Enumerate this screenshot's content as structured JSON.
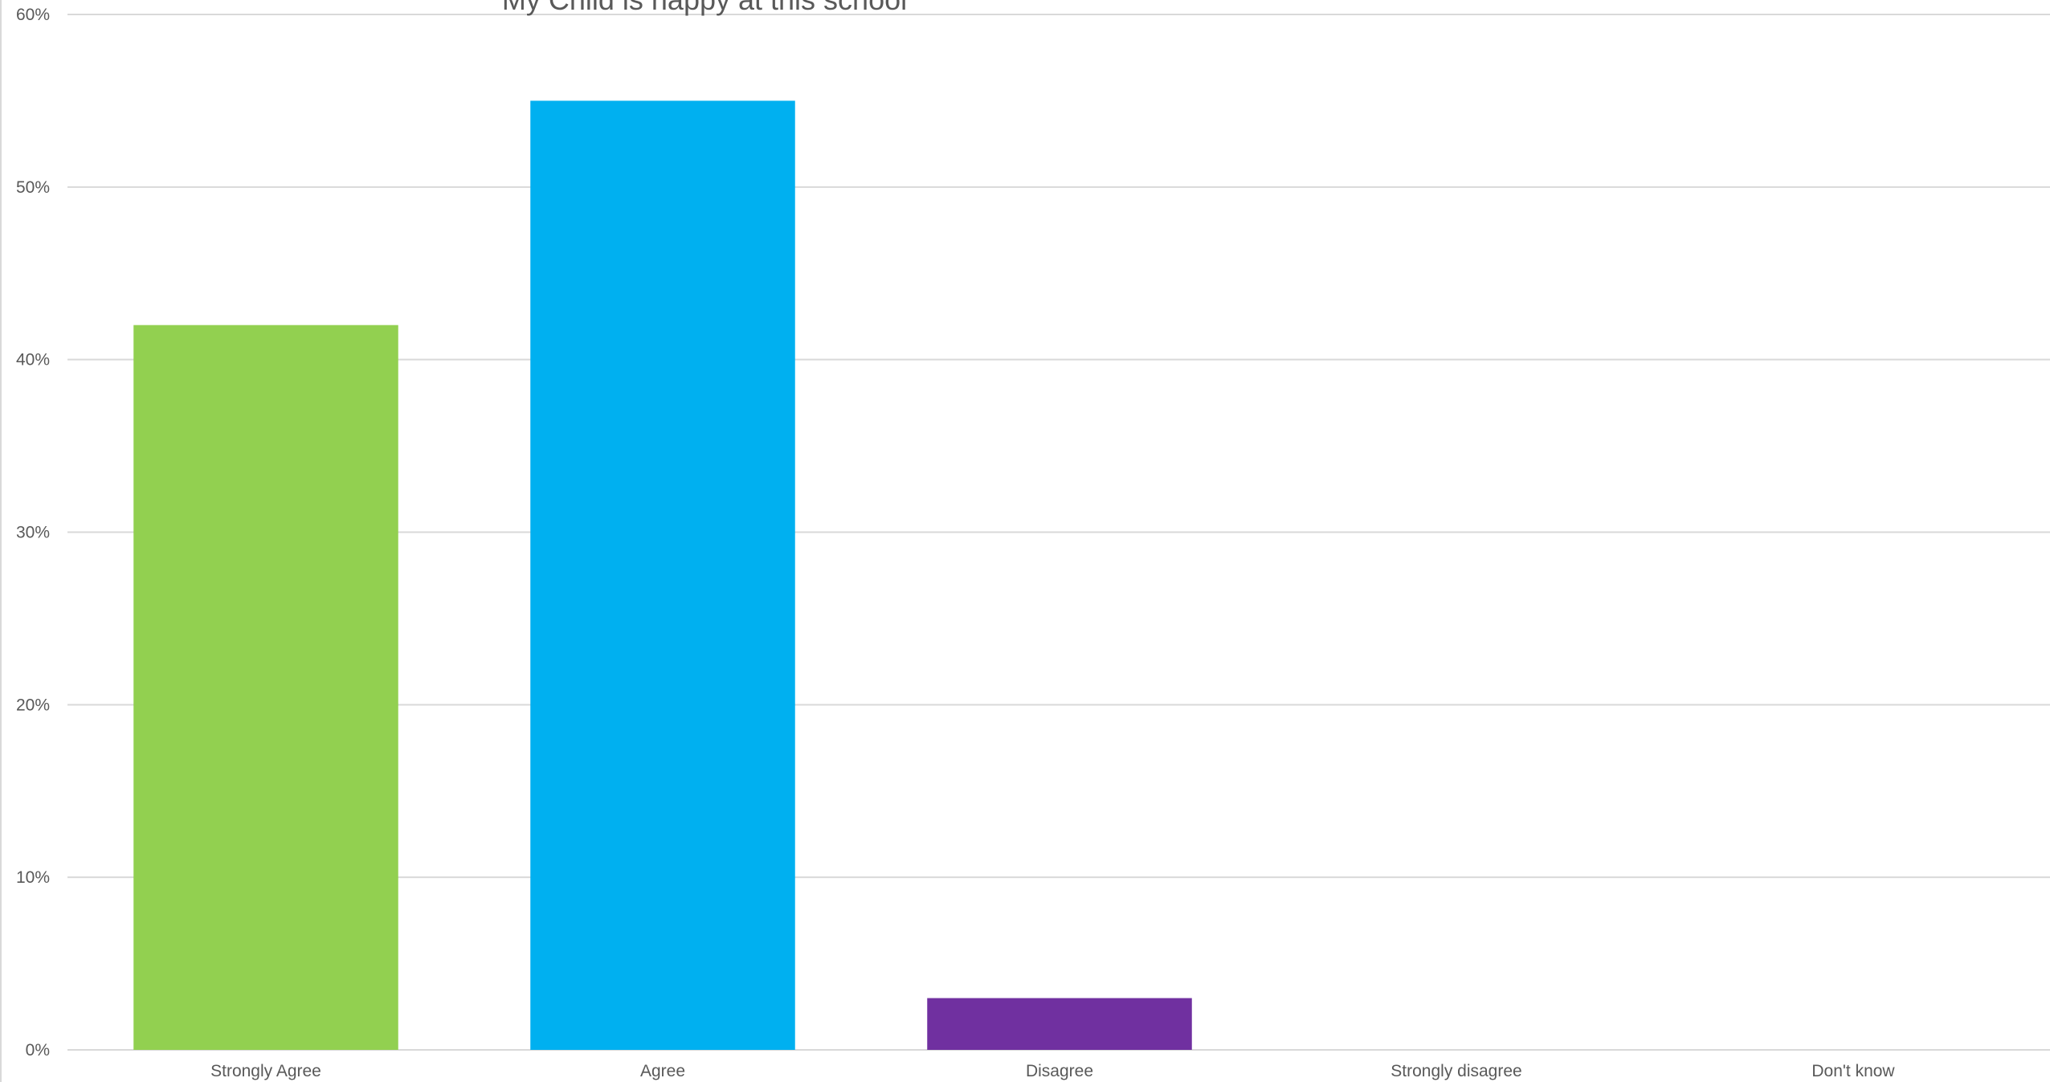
{
  "chart_data": {
    "type": "bar",
    "title": "My Child is happy at this school",
    "xlabel": "",
    "ylabel": "",
    "categories": [
      "Strongly Agree",
      "Agree",
      "Disagree",
      "Strongly disagree",
      "Don't know"
    ],
    "values": [
      42,
      55,
      3,
      0,
      0
    ],
    "value_unit": "percent",
    "colors": [
      "#92D050",
      "#00B0F0",
      "#7030A0",
      "#FFC000",
      "#FF0000"
    ],
    "ylim": [
      0,
      60
    ],
    "yticks": [
      0,
      10,
      20,
      30,
      40,
      50,
      60
    ],
    "ytick_labels": [
      "0%",
      "10%",
      "20%",
      "30%",
      "40%",
      "50%",
      "60%"
    ],
    "grid": true,
    "legend": "none"
  }
}
